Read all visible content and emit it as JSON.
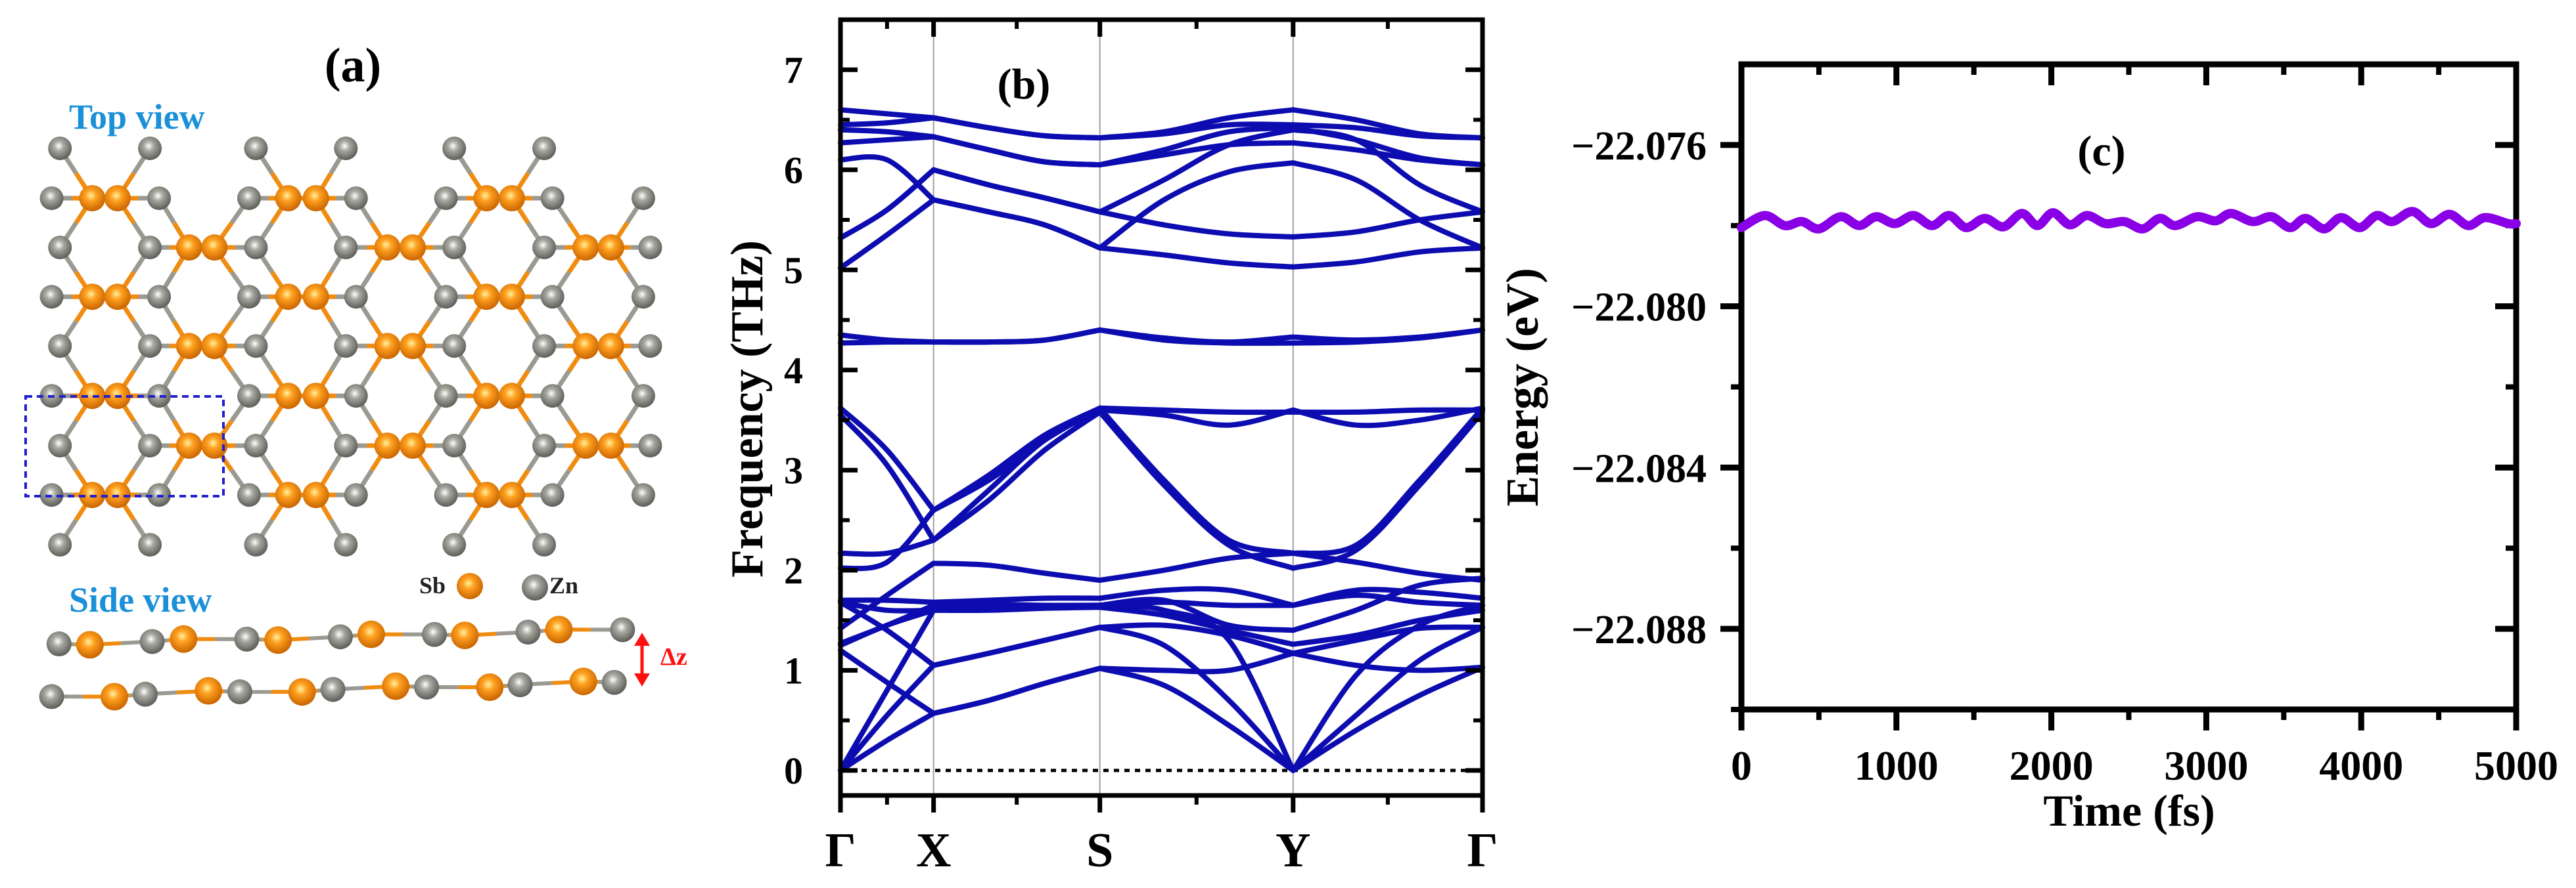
{
  "panel_a": {
    "label": "(a)",
    "top_view_label": "Top view",
    "side_view_label": "Side view",
    "legend": {
      "sb": "Sb",
      "zn": "Zn"
    },
    "dz_label": "Δz",
    "colors": {
      "sb": "#f08c10",
      "zn": "#8c8c84",
      "view_label": "#1a90d8",
      "dz": "#ff1010",
      "cell": "#2020d0"
    }
  },
  "chart_data": [
    {
      "type": "line",
      "panel_label": "(b)",
      "title": "",
      "xlabel": "",
      "ylabel": "Frequency (THz)",
      "ylim": [
        -0.25,
        7.5
      ],
      "yticks": [
        "0",
        "1",
        "2",
        "3",
        "4",
        "5",
        "6",
        "7"
      ],
      "xticks": [
        {
          "label": "Γ",
          "k": 0
        },
        {
          "label": "X",
          "k": 0.145
        },
        {
          "label": "S",
          "k": 0.404
        },
        {
          "label": "Y",
          "k": 0.705
        },
        {
          "label": "Γ",
          "k": 1.0
        }
      ],
      "color": "#0c0cb0",
      "k": [
        0,
        0.0725,
        0.145,
        0.231,
        0.318,
        0.404,
        0.504,
        0.605,
        0.705,
        0.803,
        0.902,
        1.0
      ],
      "bands": [
        [
          6.6,
          6.56,
          6.52,
          6.42,
          6.34,
          6.32,
          6.38,
          6.52,
          6.6,
          6.5,
          6.36,
          6.32
        ],
        [
          6.45,
          6.47,
          6.52,
          6.42,
          6.34,
          6.32,
          6.36,
          6.45,
          6.45,
          6.42,
          6.34,
          6.32
        ],
        [
          6.4,
          6.38,
          6.33,
          6.2,
          6.08,
          6.05,
          6.2,
          6.38,
          6.42,
          6.3,
          6.12,
          6.05
        ],
        [
          6.27,
          6.3,
          6.33,
          6.2,
          6.08,
          6.05,
          6.15,
          6.25,
          6.27,
          6.2,
          6.1,
          6.05
        ],
        [
          6.1,
          6.1,
          5.7,
          5.58,
          5.45,
          5.22,
          5.7,
          5.98,
          6.07,
          5.9,
          5.5,
          5.22
        ],
        [
          5.32,
          5.6,
          6.0,
          5.85,
          5.72,
          5.58,
          5.9,
          6.25,
          6.4,
          6.3,
          5.85,
          5.58
        ],
        [
          5.02,
          5.35,
          5.7,
          5.58,
          5.45,
          5.22,
          5.15,
          5.07,
          5.03,
          5.08,
          5.18,
          5.22
        ],
        [
          5.32,
          5.6,
          6.0,
          5.85,
          5.72,
          5.58,
          5.45,
          5.36,
          5.33,
          5.38,
          5.5,
          5.58
        ],
        [
          4.35,
          4.3,
          4.28,
          4.28,
          4.3,
          4.4,
          4.32,
          4.28,
          4.33,
          4.3,
          4.33,
          4.4
        ],
        [
          4.27,
          4.28,
          4.28,
          4.28,
          4.3,
          4.4,
          4.3,
          4.27,
          4.27,
          4.28,
          4.32,
          4.4
        ],
        [
          3.62,
          3.2,
          2.6,
          2.9,
          3.3,
          3.62,
          2.9,
          2.3,
          2.17,
          2.25,
          2.9,
          3.62
        ],
        [
          3.55,
          3.05,
          2.3,
          2.7,
          3.2,
          3.58,
          2.85,
          2.25,
          2.02,
          2.2,
          2.85,
          3.58
        ],
        [
          2.17,
          2.17,
          2.3,
          2.8,
          3.3,
          3.6,
          3.55,
          3.45,
          3.6,
          3.45,
          3.5,
          3.62
        ],
        [
          2.02,
          2.08,
          2.6,
          2.95,
          3.35,
          3.62,
          3.6,
          3.58,
          3.58,
          3.58,
          3.6,
          3.6
        ],
        [
          1.42,
          1.75,
          2.07,
          2.05,
          1.97,
          1.9,
          2.0,
          2.12,
          2.17,
          2.08,
          1.97,
          1.9
        ],
        [
          1.7,
          1.7,
          1.68,
          1.7,
          1.72,
          1.72,
          1.8,
          1.8,
          1.65,
          1.8,
          1.78,
          1.72
        ],
        [
          1.68,
          1.6,
          1.6,
          1.62,
          1.64,
          1.65,
          1.68,
          1.65,
          1.65,
          1.75,
          1.68,
          1.65
        ],
        [
          1.27,
          1.45,
          1.65,
          1.66,
          1.65,
          1.65,
          1.7,
          1.45,
          1.4,
          1.6,
          1.85,
          1.92
        ],
        [
          1.25,
          1.45,
          1.6,
          1.6,
          1.62,
          1.63,
          1.55,
          1.4,
          1.26,
          1.35,
          1.5,
          1.6
        ],
        [
          1.2,
          0.88,
          0.57,
          0.7,
          0.87,
          1.02,
          0.85,
          0.45,
          0.0,
          0.4,
          0.75,
          1.03
        ],
        [
          1.68,
          1.4,
          1.05,
          1.17,
          1.3,
          1.43,
          1.25,
          0.7,
          0.0,
          0.55,
          1.1,
          1.43
        ],
        [
          0.0,
          0.3,
          0.57,
          0.7,
          0.87,
          1.02,
          1.0,
          1.0,
          1.17,
          1.05,
          1.0,
          1.03
        ],
        [
          0.0,
          0.55,
          1.05,
          1.17,
          1.3,
          1.43,
          1.45,
          1.35,
          1.17,
          1.3,
          1.42,
          1.43
        ],
        [
          0.0,
          0.8,
          1.6,
          1.62,
          1.64,
          1.65,
          1.6,
          1.3,
          0.0,
          0.95,
          1.45,
          1.65
        ]
      ],
      "zero_line": 0
    },
    {
      "type": "line",
      "panel_label": "(c)",
      "title": "",
      "xlabel": "Time (fs)",
      "ylabel": "Energy (eV)",
      "xlim": [
        0,
        5000
      ],
      "ylim": [
        -22.09,
        -22.074
      ],
      "xticks": [
        "0",
        "1000",
        "2000",
        "3000",
        "4000",
        "5000"
      ],
      "xtick_values": [
        0,
        1000,
        2000,
        3000,
        4000,
        5000
      ],
      "yticks": [
        "−22.076",
        "−22.080",
        "−22.084",
        "−22.088"
      ],
      "ytick_values": [
        -22.076,
        -22.08,
        -22.084,
        -22.088
      ],
      "color": "#8a00e6",
      "x": [
        0,
        150,
        280,
        390,
        500,
        640,
        760,
        870,
        990,
        1110,
        1230,
        1340,
        1450,
        1570,
        1690,
        1810,
        1910,
        2010,
        2120,
        2230,
        2350,
        2470,
        2590,
        2700,
        2800,
        2940,
        3060,
        3160,
        3300,
        3420,
        3540,
        3640,
        3760,
        3870,
        3990,
        4100,
        4200,
        4330,
        4450,
        4570,
        4690,
        4800,
        4950,
        5000
      ],
      "y": [
        -22.07805,
        -22.07775,
        -22.078,
        -22.0779,
        -22.07808,
        -22.07778,
        -22.078,
        -22.07778,
        -22.07795,
        -22.07775,
        -22.078,
        -22.07775,
        -22.07805,
        -22.07782,
        -22.07803,
        -22.0777,
        -22.078,
        -22.07768,
        -22.07798,
        -22.07775,
        -22.07795,
        -22.0779,
        -22.07808,
        -22.07782,
        -22.078,
        -22.07778,
        -22.07788,
        -22.0777,
        -22.0779,
        -22.07778,
        -22.07805,
        -22.07782,
        -22.07808,
        -22.0778,
        -22.07805,
        -22.07775,
        -22.0779,
        -22.07765,
        -22.07795,
        -22.07772,
        -22.078,
        -22.0778,
        -22.07795,
        -22.07795
      ]
    }
  ]
}
